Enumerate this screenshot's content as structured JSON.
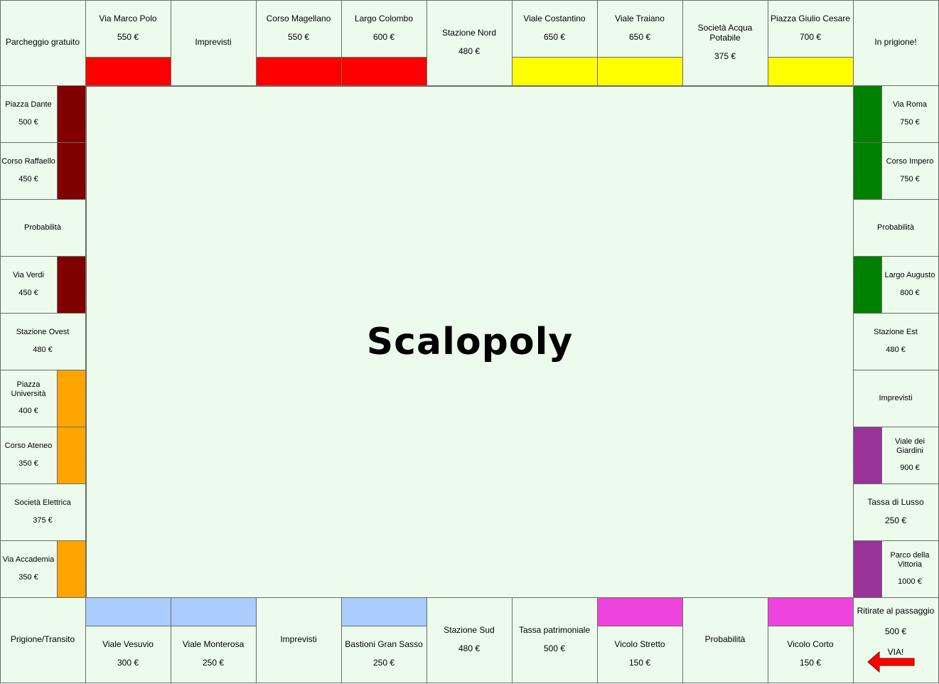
{
  "board": {
    "title": "Scalopoly",
    "colors": {
      "cell_bg": "#ecfbec",
      "red": "#ff0000",
      "yellow": "#ffff00",
      "maroon": "#800000",
      "green": "#008000",
      "orange": "#ffa500",
      "purple": "#993399",
      "light_blue": "#aaccff",
      "magenta": "#ee44dd",
      "arrow": "#ff0000"
    },
    "corners": {
      "top_left": "Parcheggio gratuito",
      "top_right": "In prigione!",
      "bottom_left": "Prigione/Transito",
      "bottom_right": {
        "line1": "Ritirate al passaggio",
        "line2": "500 €",
        "line3": "VIA!"
      }
    },
    "top": [
      {
        "name": "Via Marco Polo",
        "price": "550 €",
        "color": "red"
      },
      {
        "name": "Imprevisti",
        "price": ""
      },
      {
        "name": "Corso Magellano",
        "price": "550 €",
        "color": "red"
      },
      {
        "name": "Largo Colombo",
        "price": "600 €",
        "color": "red"
      },
      {
        "name": "Stazione Nord",
        "price": "480 €"
      },
      {
        "name": "Viale Costantino",
        "price": "650 €",
        "color": "yellow"
      },
      {
        "name": "Viale Traiano",
        "price": "650 €",
        "color": "yellow"
      },
      {
        "name": "Società Acqua Potabile",
        "price": "375 €"
      },
      {
        "name": "Piazza Giulio Cesare",
        "price": "700 €",
        "color": "yellow"
      }
    ],
    "left": [
      {
        "name": "Piazza Dante",
        "price": "500 €",
        "color": "maroon"
      },
      {
        "name": "Corso Raffaello",
        "price": "450 €",
        "color": "maroon"
      },
      {
        "name": "Probabilità",
        "price": ""
      },
      {
        "name": "Via Verdi",
        "price": "450 €",
        "color": "maroon"
      },
      {
        "name": "Stazione Ovest",
        "price": "480 €"
      },
      {
        "name": "Piazza Università",
        "price": "400 €",
        "color": "orange"
      },
      {
        "name": "Corso Ateneo",
        "price": "350 €",
        "color": "orange"
      },
      {
        "name": "Società Elettrica",
        "price": "375 €"
      },
      {
        "name": "Via Accademia",
        "price": "350 €",
        "color": "orange"
      }
    ],
    "right": [
      {
        "name": "Via Roma",
        "price": "750 €",
        "color": "green"
      },
      {
        "name": "Corso Impero",
        "price": "750 €",
        "color": "green"
      },
      {
        "name": "Probabilità",
        "price": ""
      },
      {
        "name": "Largo Augusto",
        "price": "800 €",
        "color": "green"
      },
      {
        "name": "Stazione Est",
        "price": "480 €"
      },
      {
        "name": "Imprevisti",
        "price": ""
      },
      {
        "name": "Viale dei Giardini",
        "price": "900 €",
        "color": "purple"
      },
      {
        "name": "Tassa di Lusso",
        "price": "250 €"
      },
      {
        "name": "Parco della Vittoria",
        "price": "1000 €",
        "color": "purple"
      }
    ],
    "bottom": [
      {
        "name": "Viale Vesuvio",
        "price": "300 €",
        "color": "light_blue"
      },
      {
        "name": "Viale Monterosa",
        "price": "250 €",
        "color": "light_blue"
      },
      {
        "name": "Imprevisti",
        "price": ""
      },
      {
        "name": "Bastioni Gran Sasso",
        "price": "250 €",
        "color": "light_blue"
      },
      {
        "name": "Stazione Sud",
        "price": "480 €"
      },
      {
        "name": "Tassa patrimoniale",
        "price": "500 €"
      },
      {
        "name": "Vicolo Stretto",
        "price": "150 €",
        "color": "magenta"
      },
      {
        "name": "Probabilità",
        "price": ""
      },
      {
        "name": "Vicolo Corto",
        "price": "150 €",
        "color": "magenta"
      }
    ]
  }
}
